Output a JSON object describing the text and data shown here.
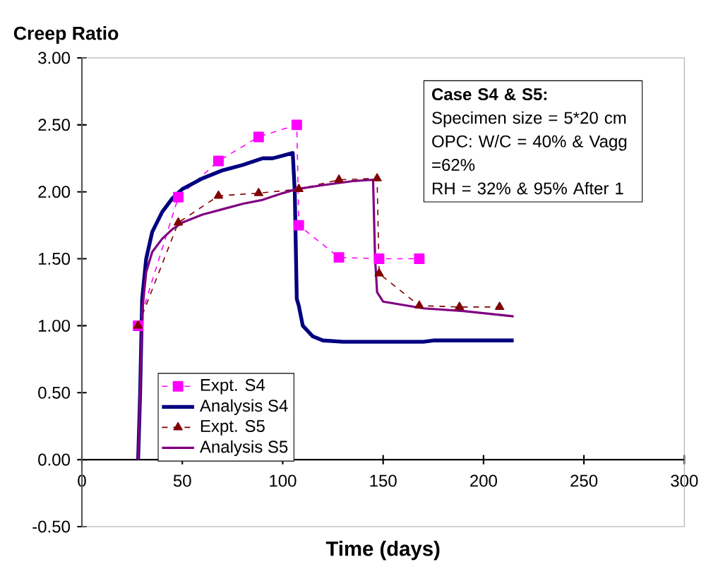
{
  "chart_data": {
    "type": "line",
    "xlabel": "Time (days)",
    "ylabel": "Creep Ratio",
    "xlim": [
      0,
      300
    ],
    "xticks": [
      0,
      50,
      100,
      150,
      200,
      250,
      300
    ],
    "ylim": [
      -0.5,
      3.0
    ],
    "yticks": [
      {
        "value": -0.5,
        "label": "-0.50"
      },
      {
        "value": 0,
        "label": "0.00"
      },
      {
        "value": 0.5,
        "label": "0.50"
      },
      {
        "value": 1.0,
        "label": "1.00"
      },
      {
        "value": 1.5,
        "label": "1.50"
      },
      {
        "value": 2.0,
        "label": "2.00"
      },
      {
        "value": 2.5,
        "label": "2.50"
      },
      {
        "value": 3.0,
        "label": "3.00"
      }
    ],
    "legend": "bottom left",
    "annotations": [
      "Case S4 & S5:",
      "Specimen size = 5*20 cm",
      "OPC: W/C = 40% & Vagg =62%",
      "RH = 32% & 95% After 1"
    ],
    "series": [
      {
        "name": "Expt. S4",
        "color": "#ff00ff",
        "marker": "square",
        "line_style": "dashed",
        "x": [
          28,
          48,
          68,
          88,
          107,
          108,
          128,
          148,
          168
        ],
        "values": [
          1.0,
          1.96,
          2.23,
          2.41,
          2.5,
          1.75,
          1.51,
          1.5,
          1.5
        ]
      },
      {
        "name": "Analysis S4",
        "color": "#000080",
        "marker": "none",
        "line_style": "solid",
        "x": [
          28,
          29,
          30,
          32,
          35,
          40,
          45,
          50,
          60,
          70,
          80,
          90,
          95,
          100,
          105,
          106,
          107,
          108,
          110,
          115,
          120,
          130,
          150,
          170,
          175,
          215
        ],
        "values": [
          0,
          0.5,
          1.2,
          1.5,
          1.7,
          1.85,
          1.95,
          2.02,
          2.1,
          2.16,
          2.2,
          2.25,
          2.25,
          2.27,
          2.29,
          2.0,
          1.2,
          1.15,
          1.0,
          0.92,
          0.89,
          0.88,
          0.88,
          0.88,
          0.89,
          0.89
        ]
      },
      {
        "name": "Expt. S5",
        "color": "#800000",
        "marker": "triangle",
        "line_style": "dashed",
        "x": [
          28,
          48,
          68,
          88,
          108,
          128,
          147,
          148,
          168,
          188,
          208
        ],
        "values": [
          1.0,
          1.77,
          1.97,
          1.99,
          2.02,
          2.09,
          2.1,
          1.39,
          1.15,
          1.14,
          1.14
        ]
      },
      {
        "name": "Analysis S5",
        "color": "#800080",
        "marker": "none",
        "line_style": "solid",
        "x": [
          28,
          29,
          30,
          32,
          35,
          40,
          45,
          50,
          60,
          70,
          80,
          90,
          100,
          107,
          120,
          135,
          145,
          146,
          147,
          150,
          170,
          190,
          215
        ],
        "values": [
          0,
          0.5,
          1.1,
          1.4,
          1.55,
          1.65,
          1.72,
          1.77,
          1.83,
          1.87,
          1.91,
          1.94,
          1.99,
          2.02,
          2.05,
          2.08,
          2.09,
          1.5,
          1.25,
          1.18,
          1.13,
          1.11,
          1.07
        ]
      }
    ]
  }
}
